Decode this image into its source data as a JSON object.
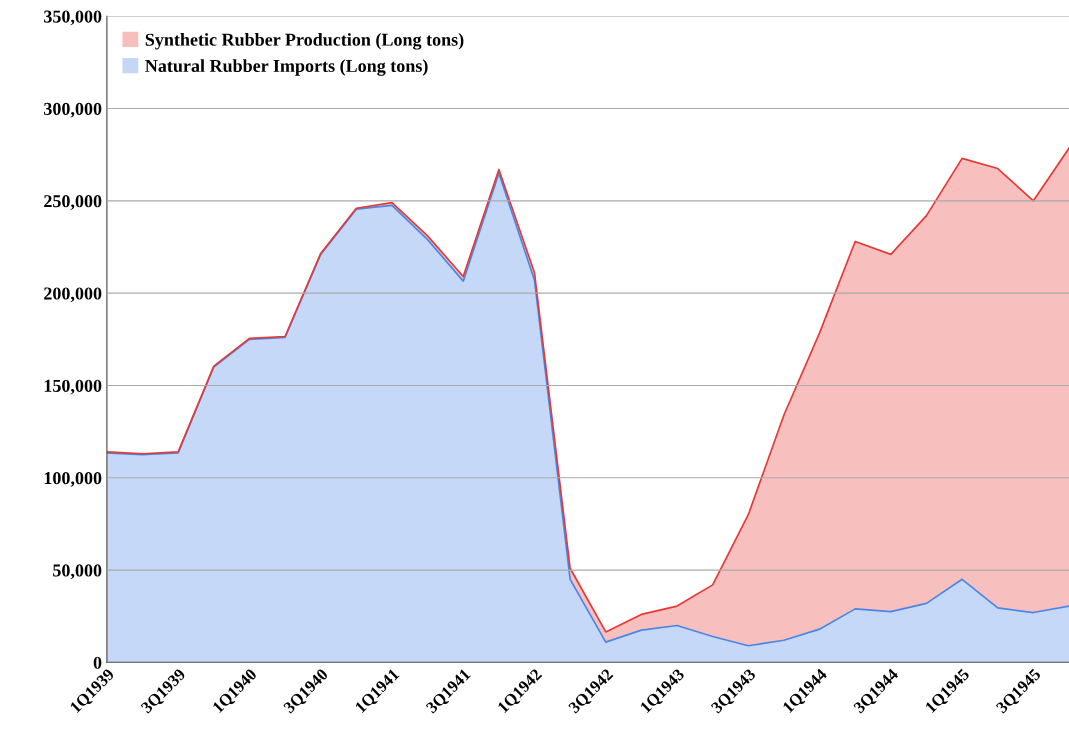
{
  "chart_data": {
    "type": "area",
    "stacked": true,
    "categories": [
      "1Q1939",
      null,
      "3Q1939",
      null,
      "1Q1940",
      null,
      "3Q1940",
      null,
      "1Q1941",
      null,
      "3Q1941",
      null,
      "1Q1942",
      null,
      "3Q1942",
      null,
      "1Q1943",
      null,
      "3Q1943",
      null,
      "1Q1944",
      null,
      "3Q1944",
      null,
      "1Q1945",
      null,
      "3Q1945",
      null
    ],
    "series": [
      {
        "name": "Natural Rubber Imports (Long tons)",
        "color": "#4a86e8",
        "values": [
          113500,
          112500,
          113500,
          160000,
          175000,
          176000,
          221000,
          245500,
          247500,
          229000,
          206500,
          265000,
          207000,
          45000,
          11000,
          17500,
          20000,
          14000,
          9000,
          12000,
          18000,
          29000,
          27500,
          32000,
          45000,
          29500,
          27000,
          30500
        ]
      },
      {
        "name": "Synthetic Rubber Production (Long tons)",
        "color": "#e53935",
        "values": [
          500,
          500,
          500,
          500,
          500,
          500,
          500,
          500,
          1500,
          2000,
          2500,
          2000,
          4000,
          6000,
          5500,
          8500,
          10500,
          28000,
          71000,
          122000,
          160500,
          199000,
          193500,
          210000,
          228000,
          238000,
          223000,
          248000
        ]
      }
    ],
    "ylim": [
      0,
      350000
    ],
    "yticks": [
      {
        "value": 0,
        "label": "0"
      },
      {
        "value": 50000,
        "label": "50,000"
      },
      {
        "value": 100000,
        "label": "100,000"
      },
      {
        "value": 150000,
        "label": "150,000"
      },
      {
        "value": 200000,
        "label": "200,000"
      },
      {
        "value": 250000,
        "label": "250,000"
      },
      {
        "value": 300000,
        "label": "300,000"
      },
      {
        "value": 350000,
        "label": "350,000"
      }
    ],
    "grid": "y",
    "legend": "top left"
  }
}
